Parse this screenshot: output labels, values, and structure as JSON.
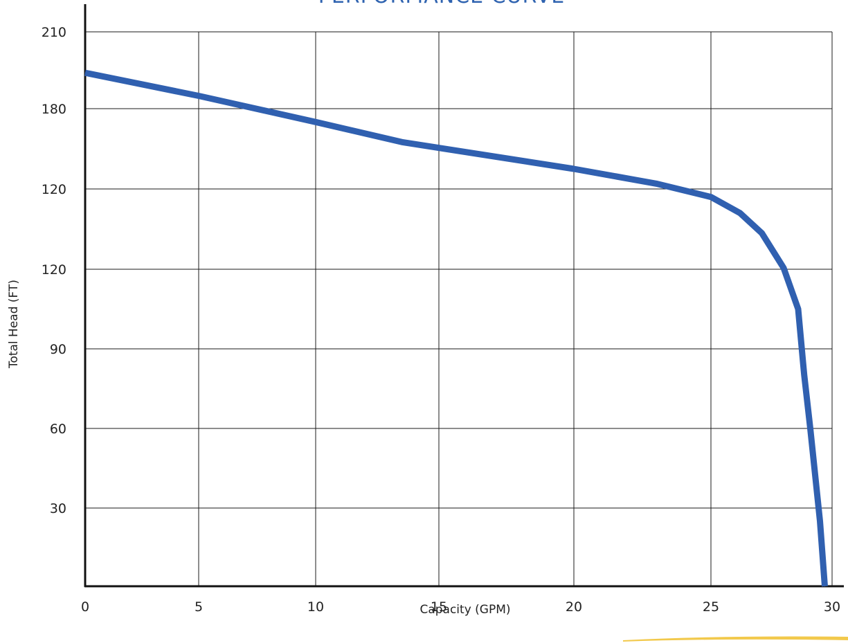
{
  "chart_data": {
    "type": "line",
    "title": "PERFORMANCE CURVE",
    "xlabel": "Capacity (GPM)",
    "ylabel": "Total Head (FT)",
    "x_ticks": [
      "0",
      "5",
      "10",
      "15",
      "20",
      "25",
      "30"
    ],
    "y_ticks": [
      "210",
      "180",
      "120",
      "120",
      "90",
      "60",
      "30"
    ],
    "grid": true,
    "colors": {
      "curve": "#3060b0",
      "title": "#2f63b0",
      "accent_swoosh": "#f2c94c"
    },
    "series": [
      {
        "values_x": [
          0,
          5,
          10,
          13.5,
          20,
          23,
          25,
          26.2,
          27.1,
          28,
          28.6,
          28.8,
          28.85,
          29.1,
          29.5,
          29.7
        ],
        "values_y": [
          194,
          185,
          175,
          167.5,
          157.5,
          152,
          147,
          141,
          133.5,
          120.5,
          105,
          85,
          80,
          60,
          25,
          0
        ]
      }
    ]
  }
}
